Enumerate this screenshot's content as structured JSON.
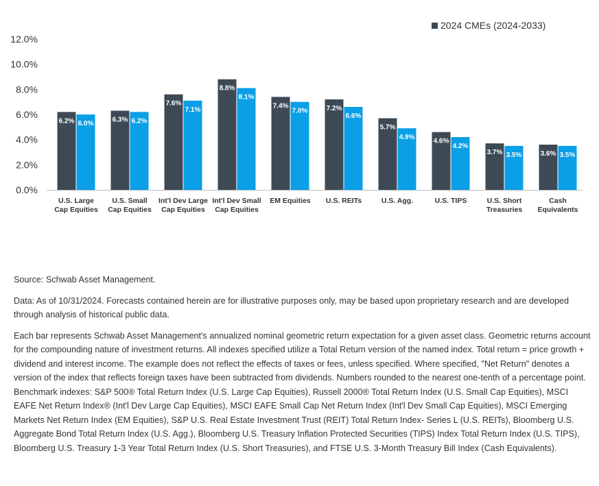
{
  "chart_data": {
    "type": "bar",
    "categories": [
      [
        "U.S. Large",
        "Cap Equities"
      ],
      [
        "U.S. Small",
        "Cap Equities"
      ],
      [
        "Int'l Dev Large",
        "Cap Equities"
      ],
      [
        "Int'l Dev Small",
        "Cap Equities"
      ],
      [
        "EM Equities"
      ],
      [
        "U.S. REITs"
      ],
      [
        "U.S. Agg."
      ],
      [
        "U.S. TIPS"
      ],
      [
        "U.S. Short",
        "Treasuries"
      ],
      [
        "Cash",
        "Equivalents"
      ]
    ],
    "series": [
      {
        "values": [
          6.2,
          6.3,
          7.6,
          8.8,
          7.4,
          7.2,
          5.7,
          4.6,
          3.7,
          3.6
        ],
        "labels": [
          "6.2%",
          "6.3%",
          "7.6%",
          "8.8%",
          "7.4%",
          "7.2%",
          "5.7%",
          "4.6%",
          "3.7%",
          "3.6%"
        ],
        "color": "#3d4a55"
      },
      {
        "name": "2024 CMEs (2024-2033)",
        "values": [
          6.0,
          6.2,
          7.1,
          8.1,
          7.0,
          6.6,
          4.9,
          4.2,
          3.5,
          3.5
        ],
        "labels": [
          "6.0%",
          "6.2%",
          "7.1%",
          "8.1%",
          "7.0%",
          "6.6%",
          "4.9%",
          "4.2%",
          "3.5%",
          "3.5%"
        ],
        "color": "#0a9fe6"
      }
    ],
    "yticks": [
      0,
      2,
      4,
      6,
      8,
      10,
      12
    ],
    "ytick_labels": [
      "0.0%",
      "2.0%",
      "4.0%",
      "6.0%",
      "8.0%",
      "10.0%",
      "12.0%"
    ],
    "ylim": [
      0,
      12
    ],
    "grid": false,
    "legend_position": "top-right"
  },
  "notes": {
    "source": "Source: Schwab Asset Management.",
    "data": "Data: As of 10/31/2024. Forecasts contained herein are for illustrative purposes only, may be based upon proprietary research and are developed through analysis of historical public data.",
    "description": "Each bar represents Schwab Asset Management's annualized nominal geometric return expectation for a given asset class. Geometric returns account for the compounding nature of investment returns. All indexes specified utilize a Total Return version of the named index. Total return = price growth + dividend and interest income. The example does not reflect the effects of taxes or fees, unless specified. Where specified, \"Net Return\" denotes a version of the index that reflects foreign taxes have been subtracted from dividends. Numbers rounded to the nearest one-tenth of a percentage point. Benchmark indexes: S&P 500® Total Return Index (U.S. Large Cap Equities), Russell 2000® Total Return Index (U.S. Small Cap Equities), MSCI EAFE Net Return Index® (Int'l Dev Large Cap Equities), MSCI EAFE Small Cap Net Return Index (Int'l Dev Small Cap Equities), MSCI Emerging Markets Net Return Index (EM Equities), S&P U.S. Real Estate Investment Trust (REIT) Total Return Index- Series L (U.S. REITs), Bloomberg U.S. Aggregate Bond Total Return Index (U.S. Agg.), Bloomberg U.S. Treasury Inflation Protected Securities (TIPS) Index Total Return Index (U.S. TIPS), Bloomberg U.S. Treasury 1-3 Year Total Return Index (U.S. Short Treasuries), and FTSE U.S. 3-Month Treasury Bill Index (Cash Equivalents)."
  }
}
